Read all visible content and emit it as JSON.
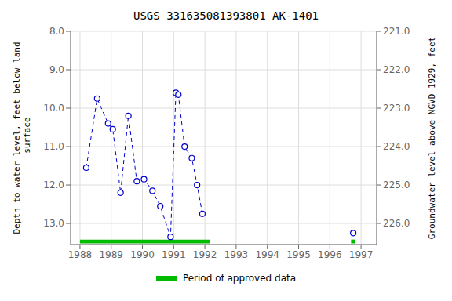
{
  "chart_data": {
    "type": "line",
    "title": "USGS 331635081393801 AK-1401",
    "ylabel": "Depth to water level, feet below land\n surface",
    "y2label": "Groundwater level above NGVD 1929, feet",
    "xlim": [
      1987.7,
      1997.5
    ],
    "xticks": [
      1988,
      1989,
      1990,
      1991,
      1992,
      1993,
      1994,
      1995,
      1996,
      1997
    ],
    "ylim": [
      8.0,
      13.55
    ],
    "yticks": [
      {
        "value": 8.0,
        "label": "8.0"
      },
      {
        "value": 9.0,
        "label": "9.0"
      },
      {
        "value": 10.0,
        "label": "10.0"
      },
      {
        "value": 11.0,
        "label": "11.0"
      },
      {
        "value": 12.0,
        "label": "12.0"
      },
      {
        "value": 13.0,
        "label": "13.0"
      }
    ],
    "y2lim": [
      221.0,
      226.55
    ],
    "y2ticks": [
      {
        "value": 221.0,
        "label": "221.0"
      },
      {
        "value": 222.0,
        "label": "222.0"
      },
      {
        "value": 223.0,
        "label": "223.0"
      },
      {
        "value": 224.0,
        "label": "224.0"
      },
      {
        "value": 225.0,
        "label": "225.0"
      },
      {
        "value": 226.0,
        "label": "226.0"
      }
    ],
    "grid": true,
    "series": [
      {
        "color": "#0000cc",
        "marker": "o",
        "line_style": "dashed",
        "x": [
          1988.2,
          1988.55,
          1988.9,
          1989.05,
          1989.3,
          1989.55,
          1989.82,
          1990.05,
          1990.32,
          1990.57,
          1990.9,
          1991.07,
          1991.15,
          1991.35,
          1991.58,
          1991.75,
          1991.92
        ],
        "values": [
          11.55,
          9.75,
          10.4,
          10.55,
          12.2,
          10.2,
          11.9,
          11.85,
          12.15,
          12.55,
          13.35,
          9.6,
          9.65,
          11.0,
          11.3,
          12.0,
          12.75
        ]
      },
      {
        "color": "#0000cc",
        "marker": "o",
        "line_style": "dashed",
        "x": [
          1996.75
        ],
        "values": [
          13.25
        ]
      }
    ],
    "approved": {
      "name": "Period of approved data",
      "color": "#00bb00",
      "y": 13.47,
      "height": 0.1,
      "periods": [
        {
          "x_start": 1988.0,
          "x_end": 1992.15
        },
        {
          "x_start": 1996.68,
          "x_end": 1996.82
        }
      ]
    }
  }
}
